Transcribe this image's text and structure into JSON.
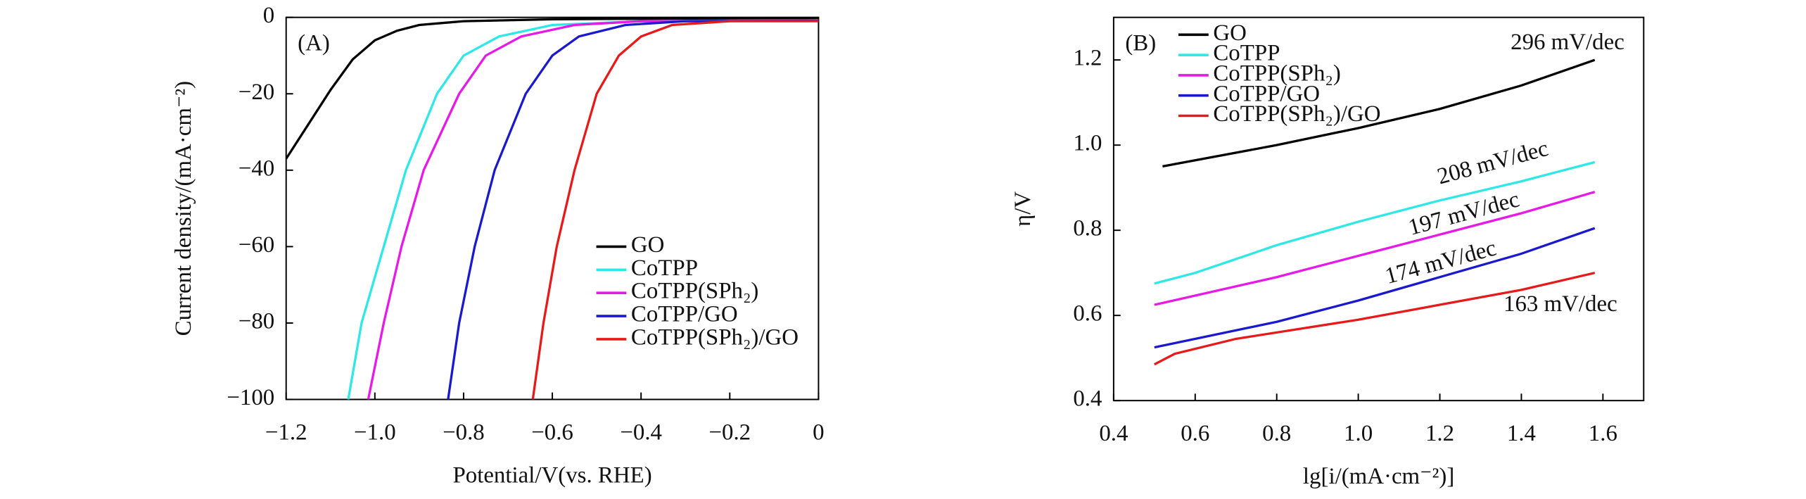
{
  "chart_data": [
    {
      "type": "line",
      "panel_label": "(A)",
      "x_label": "Potential/V(vs. RHE)",
      "y_label": "Current density/(mA·cm⁻²)",
      "xlim": [
        -1.2,
        0
      ],
      "ylim": [
        -100,
        0
      ],
      "xticks": [
        {
          "value": -1.2,
          "label": "−1.2"
        },
        {
          "value": -1.0,
          "label": "−1.0"
        },
        {
          "value": -0.8,
          "label": "−0.8"
        },
        {
          "value": -0.6,
          "label": "−0.6"
        },
        {
          "value": -0.4,
          "label": "−0.4"
        },
        {
          "value": -0.2,
          "label": "−0.2"
        },
        0
      ],
      "yticks": [
        0,
        {
          "value": -20,
          "label": "−20"
        },
        {
          "value": -40,
          "label": "−40"
        },
        {
          "value": -60,
          "label": "−60"
        },
        {
          "value": -80,
          "label": "−80"
        },
        {
          "value": -100,
          "label": "−100"
        }
      ],
      "legend": "center right",
      "series": [
        {
          "name": "GO",
          "color": "#000000",
          "x": [
            -1.2,
            -1.15,
            -1.1,
            -1.05,
            -1.0,
            -0.95,
            -0.9,
            -0.8,
            -0.6,
            -0.3,
            0
          ],
          "values": [
            -37,
            -28,
            -19,
            -11,
            -6,
            -3.5,
            -2,
            -1,
            -0.5,
            -0.3,
            -0.2
          ]
        },
        {
          "name": "CoTPP",
          "color": "#2ee8e8",
          "x": [
            -1.06,
            -1.03,
            -0.98,
            -0.93,
            -0.86,
            -0.8,
            -0.72,
            -0.6,
            -0.4,
            0
          ],
          "values": [
            -100,
            -80,
            -60,
            -40,
            -20,
            -10,
            -5,
            -2,
            -1,
            -0.8
          ]
        },
        {
          "name": "CoTPP(SPh₂)",
          "color": "#e619e6",
          "x": [
            -1.015,
            -0.98,
            -0.94,
            -0.89,
            -0.81,
            -0.75,
            -0.67,
            -0.55,
            -0.4,
            0
          ],
          "values": [
            -100,
            -80,
            -60,
            -40,
            -20,
            -10,
            -5,
            -2,
            -1,
            -0.9
          ]
        },
        {
          "name": "CoTPP/GO",
          "color": "#1a1acc",
          "x": [
            -0.835,
            -0.81,
            -0.775,
            -0.73,
            -0.66,
            -0.6,
            -0.54,
            -0.435,
            -0.3,
            0
          ],
          "values": [
            -100,
            -80,
            -60,
            -40,
            -20,
            -10,
            -5,
            -2,
            -1,
            -0.9
          ]
        },
        {
          "name": "CoTPP(SPh₂)/GO",
          "color": "#e61a1a",
          "x": [
            -0.644,
            -0.62,
            -0.59,
            -0.55,
            -0.5,
            -0.45,
            -0.4,
            -0.33,
            -0.2,
            0
          ],
          "values": [
            -100,
            -80,
            -60,
            -40,
            -20,
            -10,
            -5,
            -2,
            -1,
            -1
          ]
        }
      ]
    },
    {
      "type": "line",
      "panel_label": "(B)",
      "x_label": "lg[i/(mA·cm⁻²)]",
      "y_label": "η/V",
      "xlim": [
        0.4,
        1.7
      ],
      "ylim": [
        0.4,
        1.3
      ],
      "xticks": [
        0.4,
        0.6,
        0.8,
        {
          "value": 1,
          "label": "1.0"
        },
        1.2,
        1.4,
        1.6
      ],
      "yticks": [
        0.4,
        0.6,
        0.8,
        {
          "value": 1,
          "label": "1.0"
        },
        1.2
      ],
      "legend": "upper left",
      "series": [
        {
          "name": "GO",
          "color": "#000000",
          "x": [
            0.52,
            0.8,
            1.0,
            1.2,
            1.4,
            1.58
          ],
          "values": [
            0.95,
            1.0,
            1.04,
            1.085,
            1.14,
            1.2
          ]
        },
        {
          "name": "CoTPP",
          "color": "#2ee8e8",
          "x": [
            0.5,
            0.6,
            0.8,
            1.0,
            1.2,
            1.4,
            1.58
          ],
          "values": [
            0.675,
            0.7,
            0.765,
            0.82,
            0.87,
            0.915,
            0.96
          ]
        },
        {
          "name": "CoTPP(SPh₂)",
          "color": "#e619e6",
          "x": [
            0.5,
            0.8,
            1.0,
            1.2,
            1.4,
            1.58
          ],
          "values": [
            0.625,
            0.69,
            0.74,
            0.79,
            0.84,
            0.89
          ]
        },
        {
          "name": "CoTPP/GO",
          "color": "#1a1acc",
          "x": [
            0.5,
            0.8,
            1.0,
            1.2,
            1.4,
            1.58
          ],
          "values": [
            0.525,
            0.585,
            0.635,
            0.69,
            0.745,
            0.805
          ]
        },
        {
          "name": "CoTPP(SPh₂)/GO",
          "color": "#e61a1a",
          "x": [
            0.5,
            0.55,
            0.7,
            1.0,
            1.2,
            1.4,
            1.58
          ],
          "values": [
            0.485,
            0.51,
            0.545,
            0.59,
            0.625,
            0.66,
            0.7
          ]
        }
      ],
      "annotations": [
        "296 mV/dec",
        "208 mV/dec",
        "197 mV/dec",
        "174 mV/dec",
        "163 mV/dec"
      ]
    }
  ]
}
